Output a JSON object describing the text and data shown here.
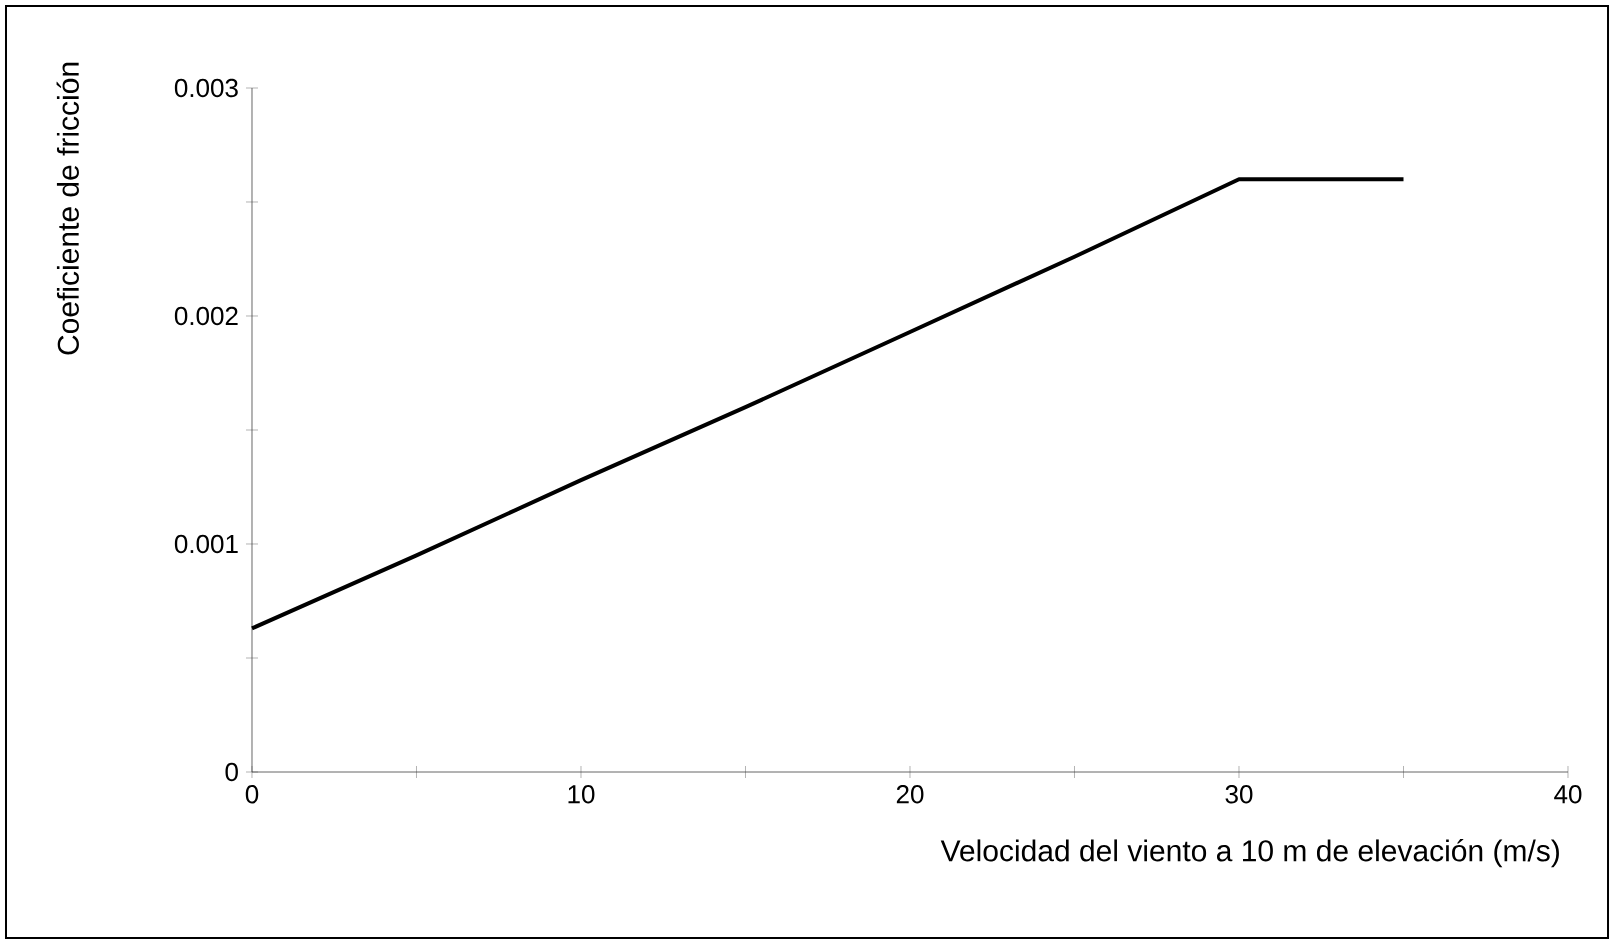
{
  "chart_data": {
    "type": "line",
    "xlabel": "Velocidad del viento a 10 m de elevación (m/s)",
    "ylabel": "Coeficiente de fricción",
    "x": [
      0,
      5,
      10,
      15,
      20,
      25,
      30,
      35
    ],
    "values": [
      0.00063,
      0.00095,
      0.00128,
      0.0016,
      0.00193,
      0.00226,
      0.0026,
      0.0026
    ],
    "color": "#000000",
    "xlim": [
      0,
      40
    ],
    "ylim": [
      0,
      0.003
    ],
    "xticks": [
      0,
      {
        "value": 5,
        "label": null
      },
      10,
      {
        "value": 15,
        "label": null
      },
      20,
      {
        "value": 25,
        "label": null
      },
      30,
      {
        "value": 35,
        "label": null
      },
      40
    ],
    "yticks": [
      0,
      {
        "value": 0.0005,
        "label": null
      },
      0.001,
      {
        "value": 0.0015,
        "label": null
      },
      0.002,
      {
        "value": 0.0025,
        "label": null
      },
      0.003
    ],
    "grid": false,
    "marker": "none",
    "line_style": "solid"
  }
}
